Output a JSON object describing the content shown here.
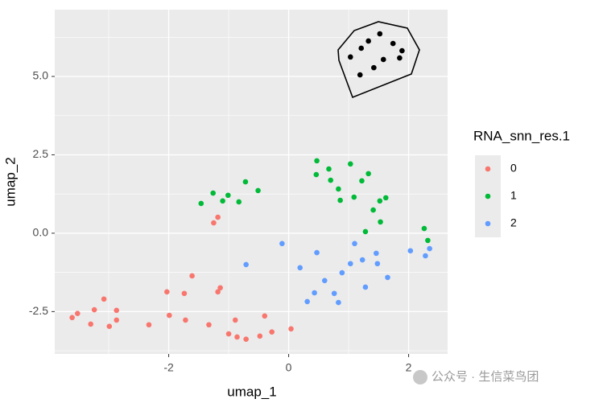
{
  "chart_data": {
    "type": "scatter",
    "x_label": "umap_1",
    "y_label": "umap_2",
    "legend_title": "RNA_snn_res.1",
    "legend_position": "right",
    "xlim": [
      -3.9,
      2.65
    ],
    "ylim": [
      -3.85,
      7.13
    ],
    "xticks": [
      -2,
      0,
      2
    ],
    "yticks": [
      -2.5,
      {
        "value": 0,
        "label": "0.0"
      },
      2.5,
      {
        "value": 5,
        "label": "5.0"
      }
    ],
    "grid": true,
    "watermark": "公众号 · 生信菜鸟团",
    "series": [
      {
        "name": "0",
        "color": "#F8766D",
        "x": [
          -3.61,
          -3.52,
          -3.3,
          -3.24,
          -3.08,
          -2.99,
          -2.87,
          -2.87,
          -2.33,
          -2.03,
          -1.99,
          -1.74,
          -1.72,
          -1.61,
          -1.33,
          -1.25,
          -1.18,
          -1.18,
          -1.14,
          -1.0,
          -0.89,
          -0.86,
          -0.71,
          -0.48,
          -0.4,
          -0.28,
          0.04
        ],
        "values": [
          -2.69,
          -2.56,
          -2.9,
          -2.44,
          -2.1,
          -2.97,
          -2.46,
          -2.77,
          -2.92,
          -1.87,
          -2.62,
          -1.92,
          -2.77,
          -1.36,
          -2.92,
          0.33,
          0.51,
          -1.87,
          -1.74,
          -3.21,
          -2.77,
          -3.31,
          -3.38,
          -3.28,
          -2.64,
          -3.15,
          -3.05
        ]
      },
      {
        "name": "1",
        "color": "#00BA38",
        "x": [
          -1.46,
          -1.26,
          -1.1,
          -1.01,
          -0.83,
          -0.72,
          -0.51,
          0.47,
          0.46,
          0.67,
          0.7,
          0.83,
          0.86,
          1.03,
          1.09,
          1.22,
          1.33,
          1.28,
          1.41,
          1.52,
          1.62,
          1.53,
          2.26,
          2.32
        ],
        "values": [
          0.95,
          1.28,
          1.03,
          1.21,
          1.0,
          1.64,
          1.36,
          2.31,
          1.87,
          2.05,
          1.69,
          1.41,
          1.05,
          2.21,
          1.15,
          1.67,
          1.9,
          0.05,
          0.74,
          1.03,
          1.13,
          0.36,
          0.15,
          -0.23
        ]
      },
      {
        "name": "2",
        "color": "#619CFF",
        "x": [
          -0.71,
          -0.11,
          0.19,
          0.31,
          0.43,
          0.47,
          0.6,
          0.76,
          0.83,
          0.89,
          1.03,
          1.1,
          1.23,
          1.28,
          1.46,
          1.48,
          1.65,
          2.03,
          2.28,
          2.35
        ],
        "values": [
          -1.0,
          -0.33,
          -1.1,
          -2.18,
          -1.9,
          -0.62,
          -1.51,
          -1.92,
          -2.21,
          -1.26,
          -0.97,
          -0.33,
          -0.85,
          -1.72,
          -0.64,
          -0.97,
          -1.41,
          -0.56,
          -0.72,
          -0.49
        ]
      },
      {
        "color": "#000000",
        "x": [
          1.03,
          1.21,
          1.33,
          1.52,
          1.74,
          1.89,
          1.85,
          1.58,
          1.42,
          1.19
        ],
        "values": [
          5.62,
          5.9,
          6.13,
          6.36,
          6.05,
          5.82,
          5.59,
          5.54,
          5.28,
          5.05
        ]
      }
    ]
  }
}
